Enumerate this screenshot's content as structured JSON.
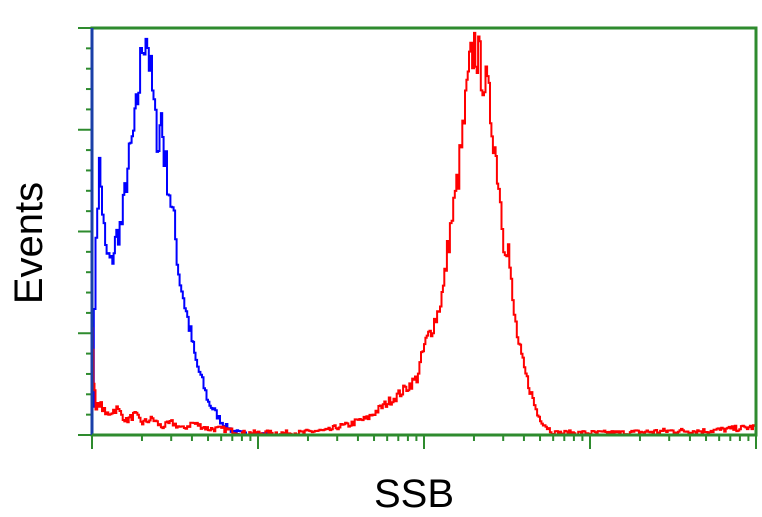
{
  "chart_data": {
    "type": "line",
    "title": "",
    "xlabel": "SSB",
    "ylabel": "Events",
    "xscale": "log",
    "xlim": [
      1,
      10000
    ],
    "ylim": [
      0,
      100
    ],
    "x_tick_labels": [],
    "y_tick_labels": [],
    "grid": false,
    "legend": "none",
    "frame_color": "#2e8b2e",
    "series": [
      {
        "color": "#0000ff",
        "x": [
          1,
          1.05,
          1.1,
          1.2,
          1.3,
          1.4,
          1.5,
          1.6,
          1.7,
          1.8,
          1.9,
          2.0,
          2.1,
          2.2,
          2.4,
          2.5,
          2.6,
          2.7,
          2.9,
          3.1,
          3.3,
          3.6,
          3.9,
          4.2,
          4.6,
          5.0,
          5.4,
          5.9,
          6.4,
          7.0,
          7.6,
          8.3,
          9.0,
          10.0,
          11.5
        ],
        "y": [
          8,
          50,
          66,
          45,
          42,
          49,
          52,
          63,
          70,
          76,
          86,
          96,
          100,
          92,
          76,
          72,
          79,
          69,
          60,
          52,
          40,
          32,
          25,
          18,
          13,
          8,
          6,
          3.5,
          2,
          1,
          0.5,
          0.3,
          0.1,
          0,
          0
        ]
      },
      {
        "color": "#ff0000",
        "x": [
          1,
          1.02,
          1.05,
          1.1,
          1.2,
          1.4,
          1.6,
          1.8,
          2.0,
          2.3,
          2.6,
          3.0,
          3.5,
          4.0,
          5.0,
          6.0,
          7.0,
          8.0,
          10,
          12,
          15,
          18,
          22,
          26,
          30,
          35,
          40,
          45,
          50,
          60,
          70,
          80,
          90,
          100,
          110,
          120,
          130,
          140,
          150,
          160,
          170,
          180,
          190,
          200,
          220,
          240,
          260,
          280,
          300,
          320,
          340,
          370,
          400,
          440,
          480,
          520,
          560,
          600,
          700,
          800,
          900,
          1000,
          1500,
          3000,
          5000,
          10000
        ],
        "y": [
          28,
          14,
          6,
          8,
          5,
          6.5,
          3.5,
          5,
          3,
          4,
          2,
          3,
          1.5,
          3,
          1.5,
          1.5,
          1,
          0.5,
          0.5,
          0.5,
          0.5,
          0.5,
          1,
          1,
          2,
          2.5,
          3.5,
          4,
          5.5,
          8,
          10,
          12,
          14,
          22,
          26,
          30,
          36,
          48,
          56,
          64,
          74,
          84,
          92,
          96,
          90,
          84,
          74,
          62,
          48,
          46,
          32,
          22,
          16,
          10,
          5,
          3,
          1.5,
          0.5,
          0.5,
          0.5,
          0.5,
          0.5,
          0.5,
          1,
          1,
          2
        ]
      }
    ]
  }
}
